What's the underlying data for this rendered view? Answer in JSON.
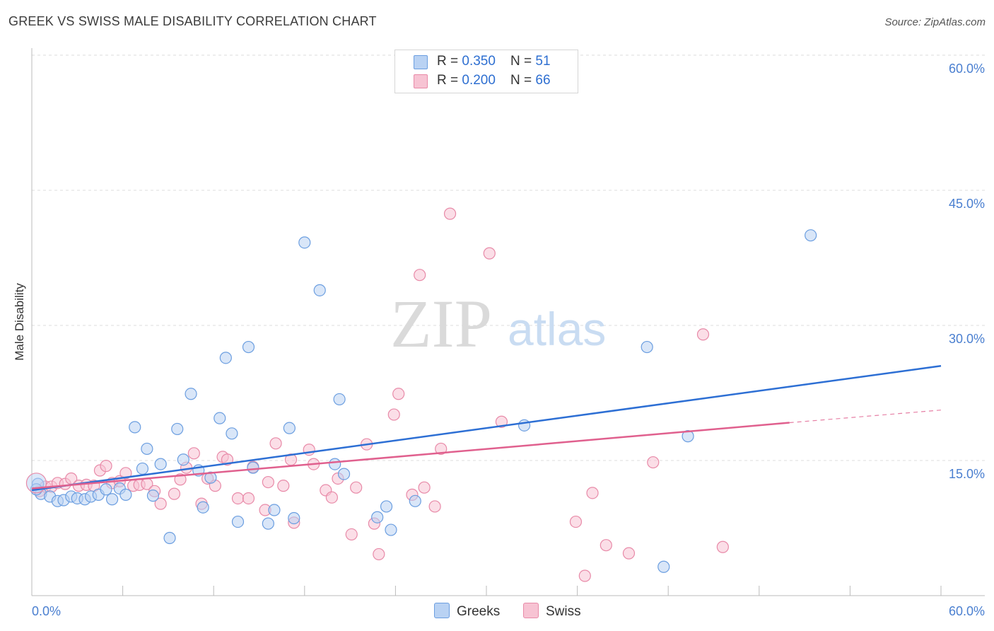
{
  "title": "GREEK VS SWISS MALE DISABILITY CORRELATION CHART",
  "source": "Source: ZipAtlas.com",
  "watermark": {
    "zip": "ZIP",
    "atlas": "atlas"
  },
  "colors": {
    "greeks_fill": "#b9d2f3",
    "greeks_stroke": "#6b9ee0",
    "greeks_line": "#2d6fd4",
    "swiss_fill": "#f7c3d3",
    "swiss_stroke": "#e88aa8",
    "swiss_line": "#e0608e",
    "tick_text": "#4a7fd0",
    "grid": "#dddddd"
  },
  "legend": {
    "rows": [
      {
        "r_label": "R = ",
        "r_value": "0.350",
        "n_label": "N = ",
        "n_value": "51"
      },
      {
        "r_label": "R = ",
        "r_value": "0.200",
        "n_label": "N = ",
        "n_value": "66"
      }
    ]
  },
  "bottom_legend": {
    "greeks": "Greeks",
    "swiss": "Swiss"
  },
  "chart_data": {
    "type": "scatter",
    "title": "GREEK VS SWISS MALE DISABILITY CORRELATION CHART",
    "xlabel": "",
    "ylabel": "Male Disability",
    "xlim": [
      0,
      60
    ],
    "ylim": [
      0,
      60
    ],
    "x_tick_labels": [
      "0.0%",
      "60.0%"
    ],
    "y_ticks": [
      {
        "value": 15,
        "label": "15.0%"
      },
      {
        "value": 30,
        "label": "30.0%"
      },
      {
        "value": 45,
        "label": "45.0%"
      },
      {
        "value": 60,
        "label": "60.0%"
      }
    ],
    "grid": "horizontal dashed",
    "legend_position": "top-center",
    "series": [
      {
        "name": "Greeks",
        "points": [
          [
            0.4,
            12.4
          ],
          [
            0.6,
            11.3
          ],
          [
            1.2,
            11.0
          ],
          [
            1.7,
            10.5
          ],
          [
            2.1,
            10.6
          ],
          [
            2.6,
            11.0
          ],
          [
            3.0,
            10.8
          ],
          [
            3.5,
            10.7
          ],
          [
            3.9,
            11.0
          ],
          [
            4.4,
            11.2
          ],
          [
            4.9,
            11.8
          ],
          [
            5.3,
            10.7
          ],
          [
            5.8,
            11.9
          ],
          [
            6.2,
            11.2
          ],
          [
            6.8,
            18.7
          ],
          [
            7.3,
            14.1
          ],
          [
            7.6,
            16.3
          ],
          [
            8.0,
            11.1
          ],
          [
            8.5,
            14.6
          ],
          [
            9.1,
            6.4
          ],
          [
            9.6,
            18.5
          ],
          [
            10.0,
            15.1
          ],
          [
            10.5,
            22.4
          ],
          [
            11.0,
            13.9
          ],
          [
            11.3,
            9.8
          ],
          [
            11.8,
            13.1
          ],
          [
            12.4,
            19.7
          ],
          [
            12.8,
            26.4
          ],
          [
            13.2,
            18.0
          ],
          [
            13.6,
            8.2
          ],
          [
            14.3,
            27.6
          ],
          [
            14.6,
            14.2
          ],
          [
            15.6,
            8.0
          ],
          [
            16.0,
            9.5
          ],
          [
            17.0,
            18.6
          ],
          [
            17.3,
            8.6
          ],
          [
            18.0,
            39.2
          ],
          [
            19.0,
            33.9
          ],
          [
            20.0,
            14.6
          ],
          [
            20.3,
            21.8
          ],
          [
            20.6,
            13.5
          ],
          [
            22.8,
            8.7
          ],
          [
            23.4,
            9.9
          ],
          [
            23.7,
            7.3
          ],
          [
            25.3,
            10.5
          ],
          [
            32.5,
            18.9
          ],
          [
            40.6,
            27.6
          ],
          [
            41.7,
            3.2
          ],
          [
            43.3,
            17.7
          ],
          [
            51.4,
            40.0
          ],
          [
            0.3,
            11.8
          ]
        ],
        "trend": {
          "x": [
            0,
            60
          ],
          "y": [
            11.7,
            25.5
          ]
        }
      },
      {
        "name": "Swiss",
        "points": [
          [
            0.5,
            11.6
          ],
          [
            0.9,
            12.1
          ],
          [
            1.3,
            12.1
          ],
          [
            1.7,
            12.5
          ],
          [
            2.2,
            12.4
          ],
          [
            2.6,
            13.0
          ],
          [
            3.1,
            12.2
          ],
          [
            3.6,
            12.3
          ],
          [
            4.1,
            12.2
          ],
          [
            4.5,
            13.9
          ],
          [
            4.9,
            14.4
          ],
          [
            5.3,
            12.5
          ],
          [
            5.8,
            12.7
          ],
          [
            6.2,
            13.6
          ],
          [
            6.7,
            12.2
          ],
          [
            7.1,
            12.3
          ],
          [
            7.6,
            12.4
          ],
          [
            8.1,
            11.6
          ],
          [
            8.5,
            10.2
          ],
          [
            9.4,
            11.3
          ],
          [
            9.8,
            12.9
          ],
          [
            10.2,
            14.2
          ],
          [
            10.7,
            15.8
          ],
          [
            11.2,
            10.2
          ],
          [
            11.6,
            13.0
          ],
          [
            12.1,
            12.2
          ],
          [
            12.6,
            15.4
          ],
          [
            12.9,
            15.1
          ],
          [
            13.6,
            10.8
          ],
          [
            14.3,
            10.8
          ],
          [
            14.6,
            14.3
          ],
          [
            15.4,
            9.5
          ],
          [
            15.6,
            12.6
          ],
          [
            16.1,
            16.9
          ],
          [
            16.6,
            12.2
          ],
          [
            17.1,
            15.1
          ],
          [
            17.3,
            8.1
          ],
          [
            18.3,
            16.2
          ],
          [
            18.6,
            14.6
          ],
          [
            19.4,
            11.7
          ],
          [
            19.8,
            10.9
          ],
          [
            20.2,
            13.0
          ],
          [
            21.1,
            6.8
          ],
          [
            21.4,
            12.0
          ],
          [
            22.1,
            16.8
          ],
          [
            22.6,
            8.0
          ],
          [
            22.9,
            4.6
          ],
          [
            23.9,
            20.1
          ],
          [
            24.2,
            22.4
          ],
          [
            25.1,
            11.2
          ],
          [
            25.6,
            35.6
          ],
          [
            25.9,
            12.0
          ],
          [
            26.6,
            9.9
          ],
          [
            27.0,
            16.3
          ],
          [
            27.6,
            42.4
          ],
          [
            30.2,
            38.0
          ],
          [
            31.0,
            19.3
          ],
          [
            33.5,
            58.1
          ],
          [
            35.9,
            8.2
          ],
          [
            36.5,
            2.2
          ],
          [
            37.0,
            11.4
          ],
          [
            37.9,
            5.6
          ],
          [
            39.4,
            4.7
          ],
          [
            41.0,
            14.8
          ],
          [
            44.3,
            29.0
          ],
          [
            45.6,
            5.4
          ]
        ],
        "trend": {
          "x": [
            0,
            50
          ],
          "y": [
            11.9,
            19.2
          ]
        },
        "trend_extension": {
          "x": [
            50,
            60
          ],
          "y": [
            19.2,
            20.6
          ]
        }
      }
    ]
  }
}
